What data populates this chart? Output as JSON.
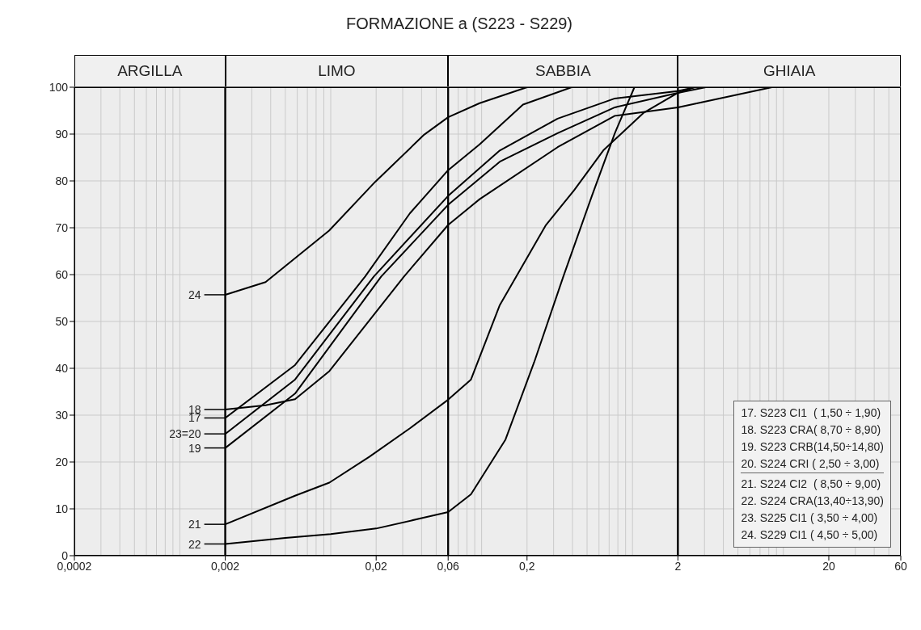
{
  "chart_data": {
    "type": "line",
    "title": "FORMAZIONE a (S223 - S229)",
    "series": [
      {
        "name": "17",
        "color": "#000000",
        "x": [
          0.002,
          0.0058,
          0.0169,
          0.0335,
          0.06,
          0.097,
          0.188,
          0.395
        ],
        "values": [
          29.4,
          40.7,
          59.6,
          73.1,
          82.3,
          87.8,
          96.3,
          100
        ]
      },
      {
        "name": "18",
        "color": "#000000",
        "x": [
          0.002,
          0.0037,
          0.0058,
          0.0098,
          0.0306,
          0.06,
          0.097,
          0.319,
          0.764,
          2,
          8.4
        ],
        "values": [
          31.2,
          32.1,
          33.4,
          39.4,
          59.6,
          70.6,
          76.1,
          87.2,
          93.9,
          95.7,
          100
        ]
      },
      {
        "name": "19",
        "color": "#000000",
        "x": [
          0.002,
          0.0058,
          0.0216,
          0.06,
          0.132,
          0.319,
          0.764,
          2,
          3.06
        ],
        "values": [
          23,
          34.6,
          59.6,
          74.9,
          84.1,
          90.2,
          95.7,
          98.8,
          100
        ]
      },
      {
        "name": "23=20",
        "color": "#000000",
        "x": [
          0.002,
          0.0058,
          0.0193,
          0.06,
          0.132,
          0.319,
          0.764,
          2,
          2.6
        ],
        "values": [
          26,
          37.6,
          59.6,
          76.8,
          86.5,
          93.3,
          97.6,
          99.2,
          100
        ]
      },
      {
        "name": "21",
        "color": "#000000",
        "x": [
          0.002,
          0.0058,
          0.0098,
          0.018,
          0.0335,
          0.06,
          0.085,
          0.132,
          0.267,
          0.41,
          0.64,
          1.18,
          2,
          2.57
        ],
        "values": [
          6.7,
          12.8,
          15.6,
          21.1,
          27.2,
          33.3,
          37.6,
          53.5,
          70.6,
          78,
          86.5,
          94.5,
          98.8,
          100
        ]
      },
      {
        "name": "22",
        "color": "#000000",
        "x": [
          0.002,
          0.005,
          0.01,
          0.02,
          0.04,
          0.06,
          0.085,
          0.144,
          0.223,
          0.348,
          0.538,
          0.764,
          1.03
        ],
        "values": [
          2.5,
          3.8,
          4.6,
          5.8,
          8,
          9.3,
          13.1,
          24.8,
          41.3,
          59.6,
          76.8,
          90.2,
          100
        ]
      },
      {
        "name": "24",
        "color": "#000000",
        "x": [
          0.002,
          0.0037,
          0.00976,
          0.0197,
          0.0417,
          0.06,
          0.097,
          0.2
        ],
        "values": [
          55.7,
          58.4,
          69.4,
          79.8,
          89.9,
          93.6,
          96.6,
          100
        ]
      }
    ],
    "xlim": [
      0.0002,
      60
    ],
    "xticks": [
      {
        "value": 0.0002,
        "label": "0,0002"
      },
      {
        "value": 0.002,
        "label": "0,002"
      },
      {
        "value": 0.02,
        "label": "0,02"
      },
      {
        "value": 0.06,
        "label": "0,06"
      },
      {
        "value": 0.2,
        "label": "0,2"
      },
      2,
      20,
      60
    ],
    "ylim": [
      0,
      100
    ],
    "yticks": [
      0,
      10,
      20,
      30,
      40,
      50,
      60,
      70,
      80,
      90,
      100
    ],
    "log": "x",
    "grid": true,
    "legend": "left",
    "marker": "none",
    "line_style": "solid",
    "bands": [
      {
        "axis": "x",
        "from": 0.0002,
        "to": 0.002,
        "label": "ARGILLA"
      },
      {
        "axis": "x",
        "from": 0.002,
        "to": 0.06,
        "label": "LIMO"
      },
      {
        "axis": "x",
        "from": 0.06,
        "to": 2,
        "label": "SABBIA"
      },
      {
        "axis": "x",
        "from": 2,
        "to": 60,
        "label": "GHIAIA"
      }
    ],
    "annotations": [
      "17. S223 CI1  ( 1,50 ÷ 1,90)",
      "18. S223 CRA( 8,70 ÷ 8,90)",
      "19. S223 CRB(14,50÷14,80)",
      "20. S224 CRI ( 2,50 ÷ 3,00)",
      "21. S224 CI2  ( 8,50 ÷ 9,00)",
      "22. S224 CRA(13,40÷13,90)",
      "23. S225 CI1 ( 3,50 ÷ 4,00)",
      "24. S229 CI1 ( 4,50 ÷ 5,00)"
    ]
  }
}
